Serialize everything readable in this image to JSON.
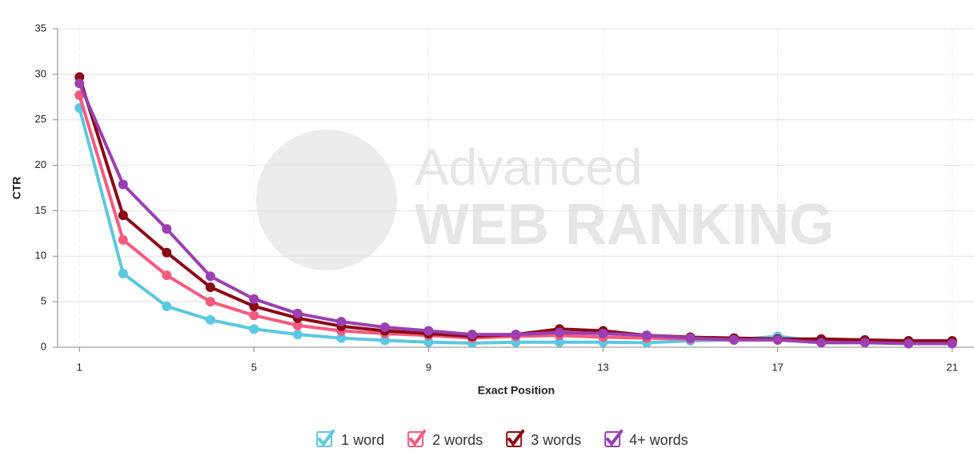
{
  "chart_data": {
    "type": "line",
    "x_label": "Exact Position",
    "y_label": "CTR",
    "watermark": [
      "Advanced",
      "WEB RANKING"
    ],
    "x": [
      1,
      2,
      3,
      4,
      5,
      6,
      7,
      8,
      9,
      10,
      11,
      12,
      13,
      14,
      15,
      16,
      17,
      18,
      19,
      20,
      21
    ],
    "xlim": [
      0.5,
      21.5
    ],
    "xticks": [
      1,
      5,
      9,
      13,
      17,
      21
    ],
    "ylim": [
      0,
      35
    ],
    "yticks": [
      0,
      5,
      10,
      15,
      20,
      25,
      30,
      35
    ],
    "grid": true,
    "legend": "bottom",
    "series": [
      {
        "name": "1 word",
        "color": "#5bc8e2",
        "values": [
          26.3,
          8.1,
          4.5,
          3.0,
          2.0,
          1.4,
          1.0,
          0.75,
          0.55,
          0.45,
          0.55,
          0.55,
          0.55,
          0.5,
          0.7,
          0.8,
          1.2,
          0.6,
          0.6,
          0.5,
          0.5
        ]
      },
      {
        "name": "2 words",
        "color": "#f45b7e",
        "values": [
          27.7,
          11.8,
          7.9,
          5.0,
          3.5,
          2.4,
          1.8,
          1.5,
          1.3,
          1.0,
          1.2,
          1.3,
          1.1,
          1.0,
          0.9,
          0.8,
          0.8,
          0.7,
          0.7,
          0.7,
          0.6
        ]
      },
      {
        "name": "3 words",
        "color": "#8b0a16",
        "values": [
          29.7,
          14.5,
          10.4,
          6.6,
          4.5,
          3.2,
          2.3,
          1.8,
          1.5,
          1.2,
          1.4,
          2.0,
          1.8,
          1.3,
          1.1,
          1.0,
          0.9,
          0.9,
          0.8,
          0.7,
          0.7
        ]
      },
      {
        "name": "4+ words",
        "color": "#9b3fb2",
        "values": [
          29.0,
          17.9,
          13.0,
          7.8,
          5.3,
          3.7,
          2.8,
          2.2,
          1.8,
          1.4,
          1.4,
          1.6,
          1.5,
          1.3,
          1.0,
          0.8,
          0.8,
          0.5,
          0.5,
          0.4,
          0.4
        ]
      }
    ]
  }
}
